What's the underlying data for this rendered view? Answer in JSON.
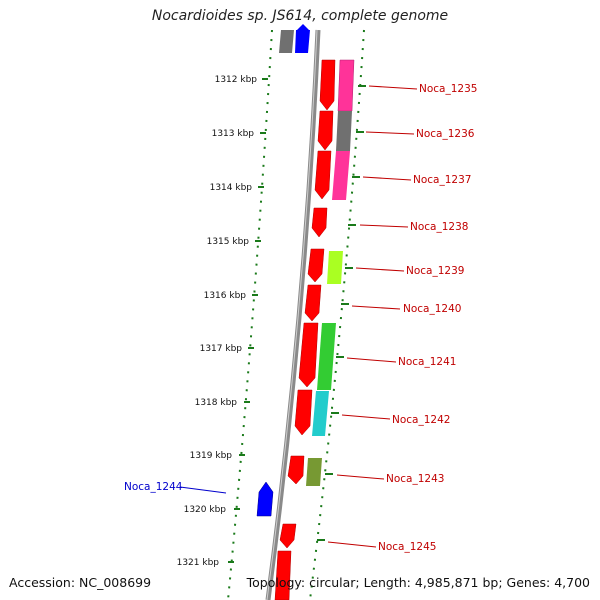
{
  "header": {
    "title": "Nocardioides sp. JS614, complete genome"
  },
  "footer": {
    "accession": "Accession: NC_008699",
    "topology": "Topology: circular; Length: 4,985,871 bp; Genes: 4,700"
  },
  "colors": {
    "red": "#ff0000",
    "blue": "#0000ff",
    "gray": "#6e6e6e",
    "magenta": "#ff3399",
    "lime": "#aaff22",
    "green": "#33cc33",
    "cyan": "#22cccc",
    "olive": "#779933",
    "backbone": "#888888",
    "tick": "#1a7a1a",
    "label_red": "#c00000",
    "label_blue": "#0000cc"
  },
  "kbp_ticks": [
    "1312 kbp",
    "1313 kbp",
    "1314 kbp",
    "1315 kbp",
    "1316 kbp",
    "1317 kbp",
    "1318 kbp",
    "1319 kbp",
    "1320 kbp",
    "1321 kbp"
  ],
  "gene_labels": [
    {
      "name": "Noca_1235",
      "color": "red"
    },
    {
      "name": "Noca_1236",
      "color": "red"
    },
    {
      "name": "Noca_1237",
      "color": "red"
    },
    {
      "name": "Noca_1238",
      "color": "red"
    },
    {
      "name": "Noca_1239",
      "color": "red"
    },
    {
      "name": "Noca_1240",
      "color": "red"
    },
    {
      "name": "Noca_1241",
      "color": "red"
    },
    {
      "name": "Noca_1242",
      "color": "red"
    },
    {
      "name": "Noca_1243",
      "color": "red"
    },
    {
      "name": "Noca_1244",
      "color": "blue"
    },
    {
      "name": "Noca_1245",
      "color": "red"
    }
  ]
}
